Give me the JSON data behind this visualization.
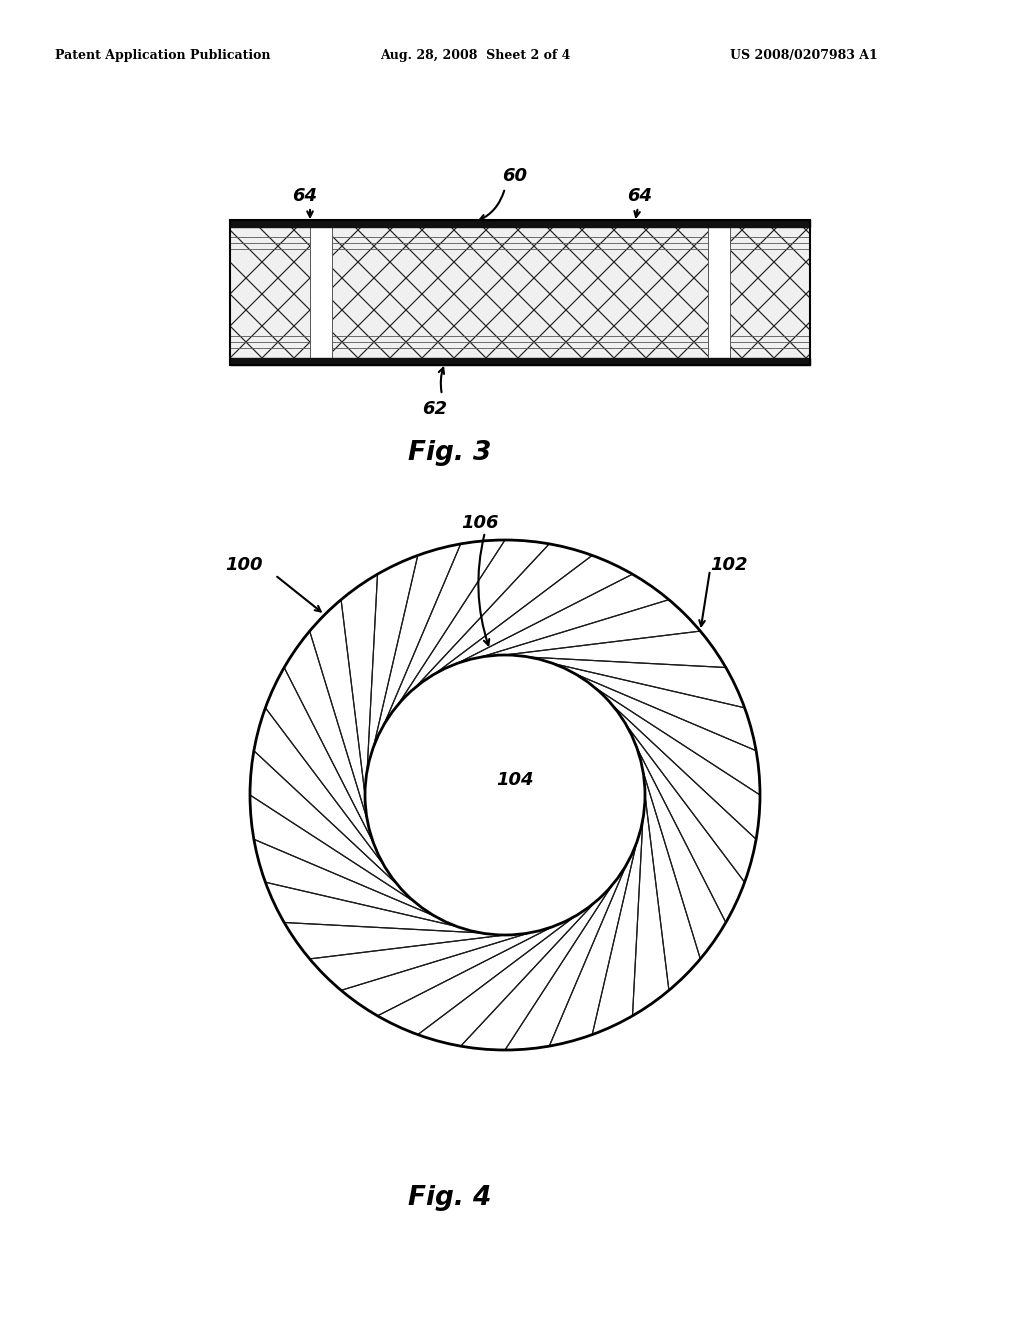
{
  "header_left": "Patent Application Publication",
  "header_mid": "Aug. 28, 2008  Sheet 2 of 4",
  "header_right": "US 2008/0207983 A1",
  "fig3_label": "Fig. 3",
  "fig4_label": "Fig. 4",
  "label_60": "60",
  "label_62": "62",
  "label_64a": "64",
  "label_64b": "64",
  "label_100": "100",
  "label_102": "102",
  "label_104": "104",
  "label_106": "106",
  "bg_color": "#ffffff",
  "line_color": "#000000"
}
